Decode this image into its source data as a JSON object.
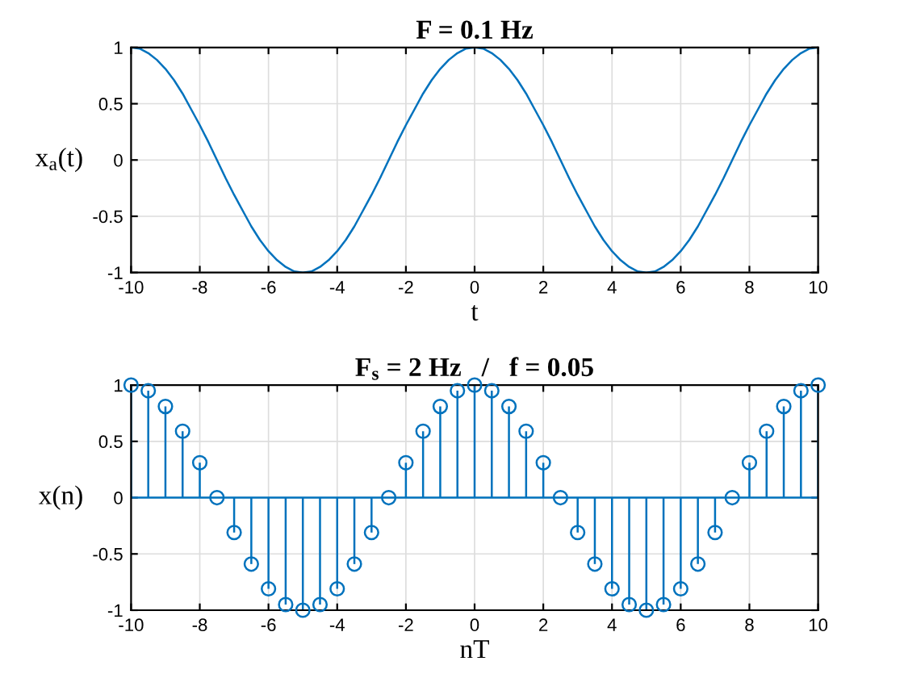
{
  "chart_data": [
    {
      "type": "line",
      "title": "F = 0.1 Hz",
      "xlabel": "t",
      "ylabel": "x$_{a}$(t)",
      "x": [
        -10,
        -9.75,
        -9.5,
        -9.25,
        -9,
        -8.75,
        -8.5,
        -8.25,
        -8,
        -7.75,
        -7.5,
        -7.25,
        -7,
        -6.75,
        -6.5,
        -6.25,
        -6,
        -5.75,
        -5.5,
        -5.25,
        -5,
        -4.75,
        -4.5,
        -4.25,
        -4,
        -3.75,
        -3.5,
        -3.25,
        -3,
        -2.75,
        -2.5,
        -2.25,
        -2,
        -1.75,
        -1.5,
        -1.25,
        -1,
        -0.75,
        -0.5,
        -0.25,
        0,
        0.25,
        0.5,
        0.75,
        1,
        1.25,
        1.5,
        1.75,
        2,
        2.25,
        2.5,
        2.75,
        3,
        3.25,
        3.5,
        3.75,
        4,
        4.25,
        4.5,
        4.75,
        5,
        5.25,
        5.5,
        5.75,
        6,
        6.25,
        6.5,
        6.75,
        7,
        7.25,
        7.5,
        7.75,
        8,
        8.25,
        8.5,
        8.75,
        9,
        9.25,
        9.5,
        9.75,
        10
      ],
      "series": [
        {
          "color": "#0072bd",
          "values": [
            1,
            0.99,
            0.95,
            0.89,
            0.81,
            0.71,
            0.59,
            0.45,
            0.31,
            0.16,
            0,
            -0.16,
            -0.31,
            -0.45,
            -0.59,
            -0.71,
            -0.81,
            -0.89,
            -0.95,
            -0.99,
            -1,
            -0.99,
            -0.95,
            -0.89,
            -0.81,
            -0.71,
            -0.59,
            -0.45,
            -0.31,
            -0.16,
            0,
            0.16,
            0.31,
            0.45,
            0.59,
            0.71,
            0.81,
            0.89,
            0.95,
            0.99,
            1,
            0.99,
            0.95,
            0.89,
            0.81,
            0.71,
            0.59,
            0.45,
            0.31,
            0.16,
            0,
            -0.16,
            -0.31,
            -0.45,
            -0.59,
            -0.71,
            -0.81,
            -0.89,
            -0.95,
            -0.99,
            -1,
            -0.99,
            -0.95,
            -0.89,
            -0.81,
            -0.71,
            -0.59,
            -0.45,
            -0.31,
            -0.16,
            0,
            0.16,
            0.31,
            0.45,
            0.59,
            0.71,
            0.81,
            0.89,
            0.95,
            0.99,
            1
          ]
        }
      ],
      "xlim": [
        -10,
        10
      ],
      "xticks": [
        -10,
        -8,
        -6,
        -4,
        -2,
        0,
        2,
        4,
        6,
        8,
        10
      ],
      "ylim": [
        -1,
        1
      ],
      "yticks": [
        -1,
        -0.5,
        0,
        0.5,
        1
      ],
      "grid": true,
      "marker": "none",
      "line_style": "solid"
    },
    {
      "type": "lollipop",
      "title": "F$_{s}$ = 2 Hz   /   f = 0.05",
      "xlabel": "nT",
      "ylabel": "x(n)",
      "x": [
        -10,
        -9.5,
        -9,
        -8.5,
        -8,
        -7.5,
        -7,
        -6.5,
        -6,
        -5.5,
        -5,
        -4.5,
        -4,
        -3.5,
        -3,
        -2.5,
        -2,
        -1.5,
        -1,
        -0.5,
        0,
        0.5,
        1,
        1.5,
        2,
        2.5,
        3,
        3.5,
        4,
        4.5,
        5,
        5.5,
        6,
        6.5,
        7,
        7.5,
        8,
        8.5,
        9,
        9.5,
        10
      ],
      "series": [
        {
          "color": "#0072bd",
          "values": [
            1,
            0.95,
            0.81,
            0.59,
            0.31,
            0,
            -0.31,
            -0.59,
            -0.81,
            -0.95,
            -1,
            -0.95,
            -0.81,
            -0.59,
            -0.31,
            0,
            0.31,
            0.59,
            0.81,
            0.95,
            1,
            0.95,
            0.81,
            0.59,
            0.31,
            0,
            -0.31,
            -0.59,
            -0.81,
            -0.95,
            -1,
            -0.95,
            -0.81,
            -0.59,
            -0.31,
            0,
            0.31,
            0.59,
            0.81,
            0.95,
            1
          ]
        }
      ],
      "xlim": [
        -10,
        10
      ],
      "xticks": [
        -10,
        -8,
        -6,
        -4,
        -2,
        0,
        2,
        4,
        6,
        8,
        10
      ],
      "ylim": [
        -1,
        1
      ],
      "yticks": [
        -1,
        -0.5,
        0,
        0.5,
        1
      ],
      "grid": true,
      "marker": "circle",
      "line_style": "solid",
      "ref_lines": [
        {
          "axis": "y",
          "value": 0,
          "color": "#0072bd",
          "line_style": "solid"
        }
      ]
    }
  ]
}
